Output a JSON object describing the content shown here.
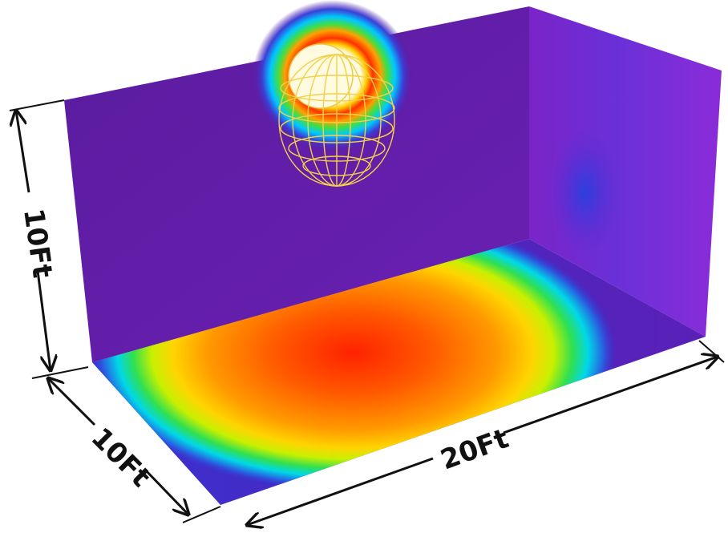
{
  "dimensions": {
    "height_label": "10Ft",
    "depth_label": "10Ft",
    "width_label": "20Ft"
  },
  "colors": {
    "background": "#ffffff",
    "wall_base": "#5a1aa0",
    "intensity_scale": [
      "#5a1aa0",
      "#2a3bd8",
      "#00c8ff",
      "#20e060",
      "#c8f000",
      "#ffd000",
      "#ff7a00",
      "#ff2000"
    ],
    "luminaire_core": "#fffbe0",
    "luminaire_wire": "#f2d04a",
    "dimension_lines": "#111111"
  },
  "icons": {
    "luminaire": "lamp-photometric-web-icon"
  }
}
